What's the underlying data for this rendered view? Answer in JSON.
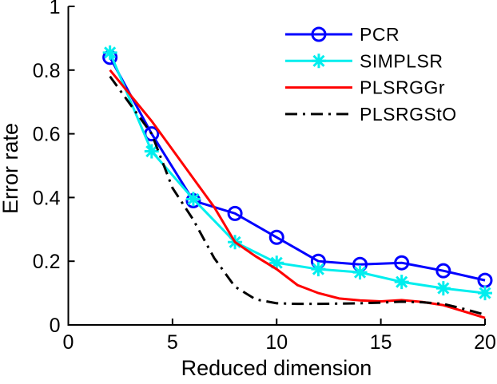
{
  "chart_data": {
    "type": "line",
    "title": "",
    "xlabel": "Reduced dimension",
    "ylabel": "Error rate",
    "xlim": [
      0,
      20
    ],
    "ylim": [
      0,
      1
    ],
    "xticks": [
      0,
      5,
      10,
      15,
      20
    ],
    "yticks": [
      0,
      0.2,
      0.4,
      0.6,
      0.8,
      1
    ],
    "xtick_labels": [
      "0",
      "5",
      "10",
      "15",
      "20"
    ],
    "ytick_labels": [
      "0",
      "0.2",
      "0.4",
      "0.6",
      "0.8",
      "1"
    ],
    "grid": false,
    "legend_position": "upper-right",
    "legend_box": false,
    "axis_color": "#000000",
    "series": [
      {
        "name": "PCR",
        "color": "#0000ff",
        "marker": "circle",
        "linestyle": "solid",
        "x": [
          2,
          4,
          6,
          8,
          10,
          12,
          14,
          16,
          18,
          20
        ],
        "y": [
          0.84,
          0.6,
          0.39,
          0.35,
          0.275,
          0.2,
          0.19,
          0.195,
          0.17,
          0.14
        ]
      },
      {
        "name": "SIMPLSR",
        "color": "#00eeee",
        "marker": "asterisk",
        "linestyle": "solid",
        "x": [
          2,
          4,
          6,
          8,
          10,
          12,
          14,
          16,
          18,
          20
        ],
        "y": [
          0.855,
          0.545,
          0.395,
          0.26,
          0.195,
          0.175,
          0.165,
          0.135,
          0.115,
          0.1
        ]
      },
      {
        "name": "PLSRGGr",
        "color": "#ff0000",
        "marker": "none",
        "linestyle": "solid",
        "x": [
          2,
          3,
          4,
          5,
          6,
          7,
          8,
          9,
          10,
          11,
          12,
          13,
          14,
          15,
          16,
          17,
          18,
          19,
          20
        ],
        "y": [
          0.8,
          0.72,
          0.64,
          0.55,
          0.46,
          0.37,
          0.26,
          0.215,
          0.175,
          0.125,
          0.1,
          0.083,
          0.077,
          0.074,
          0.078,
          0.072,
          0.062,
          0.042,
          0.022
        ]
      },
      {
        "name": "PLSRGStO",
        "color": "#000000",
        "marker": "none",
        "linestyle": "dashdot",
        "x": [
          2,
          3,
          4,
          5,
          6,
          7,
          8,
          9,
          10,
          11,
          12,
          13,
          14,
          15,
          16,
          17,
          18,
          19,
          20
        ],
        "y": [
          0.78,
          0.69,
          0.6,
          0.43,
          0.33,
          0.21,
          0.12,
          0.08,
          0.068,
          0.066,
          0.066,
          0.067,
          0.068,
          0.07,
          0.073,
          0.071,
          0.066,
          0.05,
          0.032
        ]
      }
    ]
  }
}
